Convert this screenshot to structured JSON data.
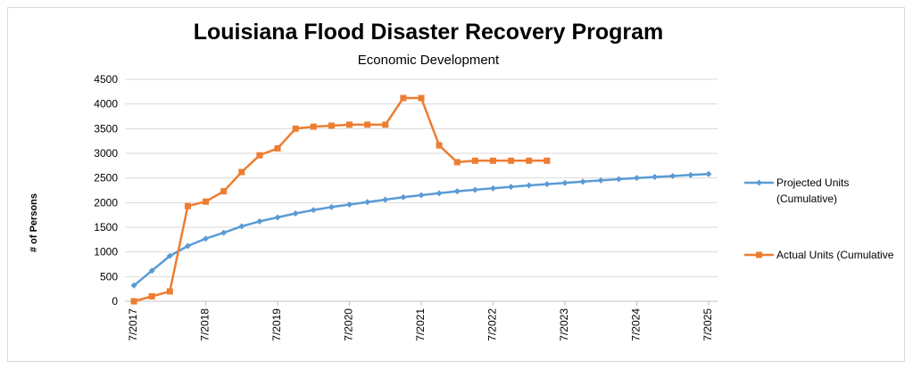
{
  "chart_data": {
    "type": "line",
    "title": "Louisiana Flood Disaster Recovery Program",
    "subtitle": "Economic Development",
    "ylabel": "# of Persons",
    "xlabel": "",
    "ylim": [
      0,
      4500
    ],
    "yticks": [
      0,
      500,
      1000,
      1500,
      2000,
      2500,
      3000,
      3500,
      4000,
      4500
    ],
    "xticks": [
      "7/2017",
      "7/2018",
      "7/2019",
      "7/2020",
      "7/2021",
      "7/2022",
      "7/2023",
      "7/2024",
      "7/2025"
    ],
    "x_point_count": 33,
    "grid": "horizontal",
    "legend": "right",
    "series": [
      {
        "name": "Projected Units (Cumulative)",
        "legend_lines": [
          "Projected Units",
          "(Cumulative)"
        ],
        "color": "#5b9bd5",
        "marker": "diamond",
        "values": [
          320,
          620,
          920,
          1120,
          1270,
          1390,
          1520,
          1620,
          1700,
          1780,
          1850,
          1910,
          1960,
          2010,
          2060,
          2110,
          2150,
          2190,
          2230,
          2260,
          2290,
          2320,
          2350,
          2375,
          2400,
          2425,
          2450,
          2475,
          2500,
          2520,
          2540,
          2560,
          2580
        ]
      },
      {
        "name": "Actual Units (Cumulative",
        "legend_lines": [
          "Actual Units (Cumulative"
        ],
        "color": "#ed7d31",
        "marker": "square",
        "values": [
          0,
          100,
          200,
          1930,
          2020,
          2230,
          2620,
          2960,
          3100,
          3500,
          3540,
          3560,
          3580,
          3580,
          3580,
          4120,
          4120,
          3160,
          2820,
          2850,
          2850,
          2850,
          2850,
          2850
        ]
      }
    ]
  }
}
